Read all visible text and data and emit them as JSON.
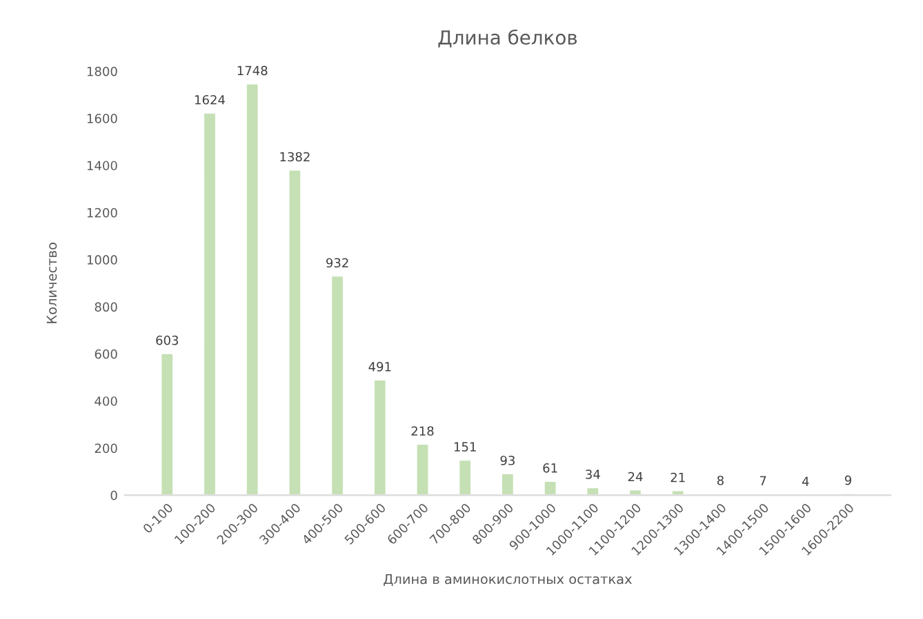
{
  "chart_data": {
    "type": "bar",
    "title": "Длина белков",
    "xlabel": "Длина в аминокислотных остатках",
    "ylabel": "Количество",
    "categories": [
      "0-100",
      "100-200",
      "200-300",
      "300-400",
      "400-500",
      "500-600",
      "600-700",
      "700-800",
      "800-900",
      "900-1000",
      "1000-1100",
      "1100-1200",
      "1200-1300",
      "1300-1400",
      "1400-1500",
      "1500-1600",
      "1600-2200"
    ],
    "values": [
      603,
      1624,
      1748,
      1382,
      932,
      491,
      218,
      151,
      93,
      61,
      34,
      24,
      21,
      8,
      7,
      4,
      9
    ],
    "color": "#c5e0b4",
    "ylim": [
      0,
      1800
    ],
    "yticks": [
      0,
      200,
      400,
      600,
      800,
      1000,
      1200,
      1400,
      1600,
      1800
    ],
    "data_labels": true,
    "grid": false
  }
}
